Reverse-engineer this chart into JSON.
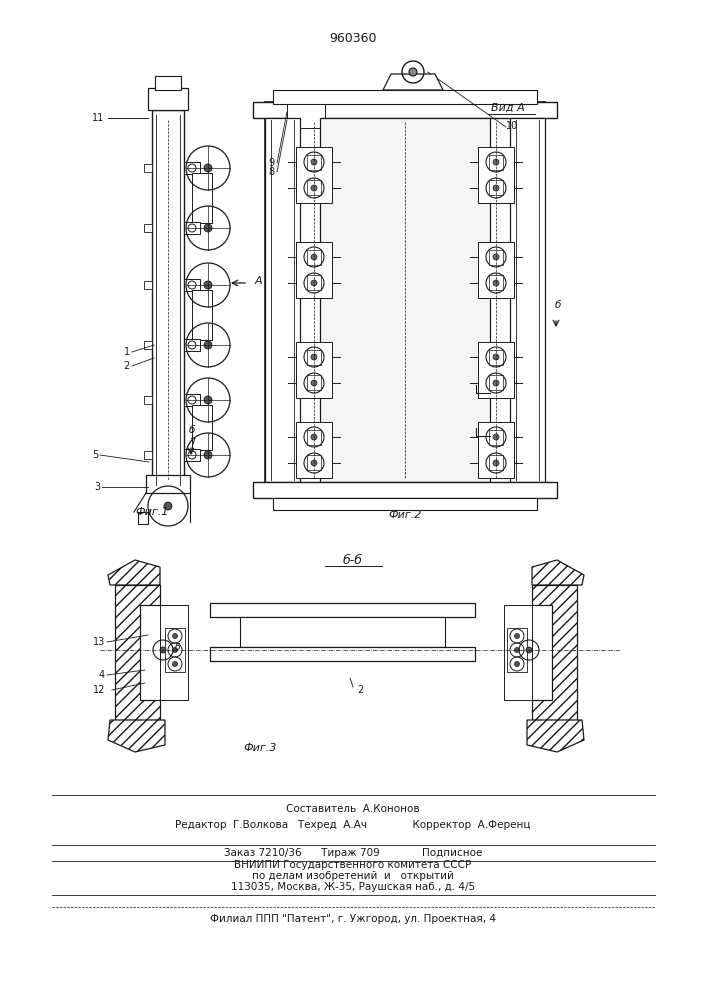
{
  "patent_number": "960360",
  "bg": "#ffffff",
  "lc": "#1a1a1a",
  "fig1_label": "Фиг.1",
  "fig2_label": "Фиг.2",
  "fig3_label": "Фиг.3",
  "vid_a_label": "Вид A",
  "bb_label": "б-б",
  "footer1": "Составитель  А.Кононов",
  "footer2": "Редактор  Г.Волкова   Техред  А.Ач              Корректор  А.Ференц",
  "footer3": "Заказ 7210/36      Тираж 709             Подписное",
  "footer4": "ВНИИПИ Государственного комитета СССР",
  "footer5": "по делам изобретений  и   открытий",
  "footer6": "113035, Москва, Ж-35, Раушская наб., д. 4/5",
  "footer7": "Филиал ППП \"Патент\", г. Ужгород, ул. Проектная, 4"
}
